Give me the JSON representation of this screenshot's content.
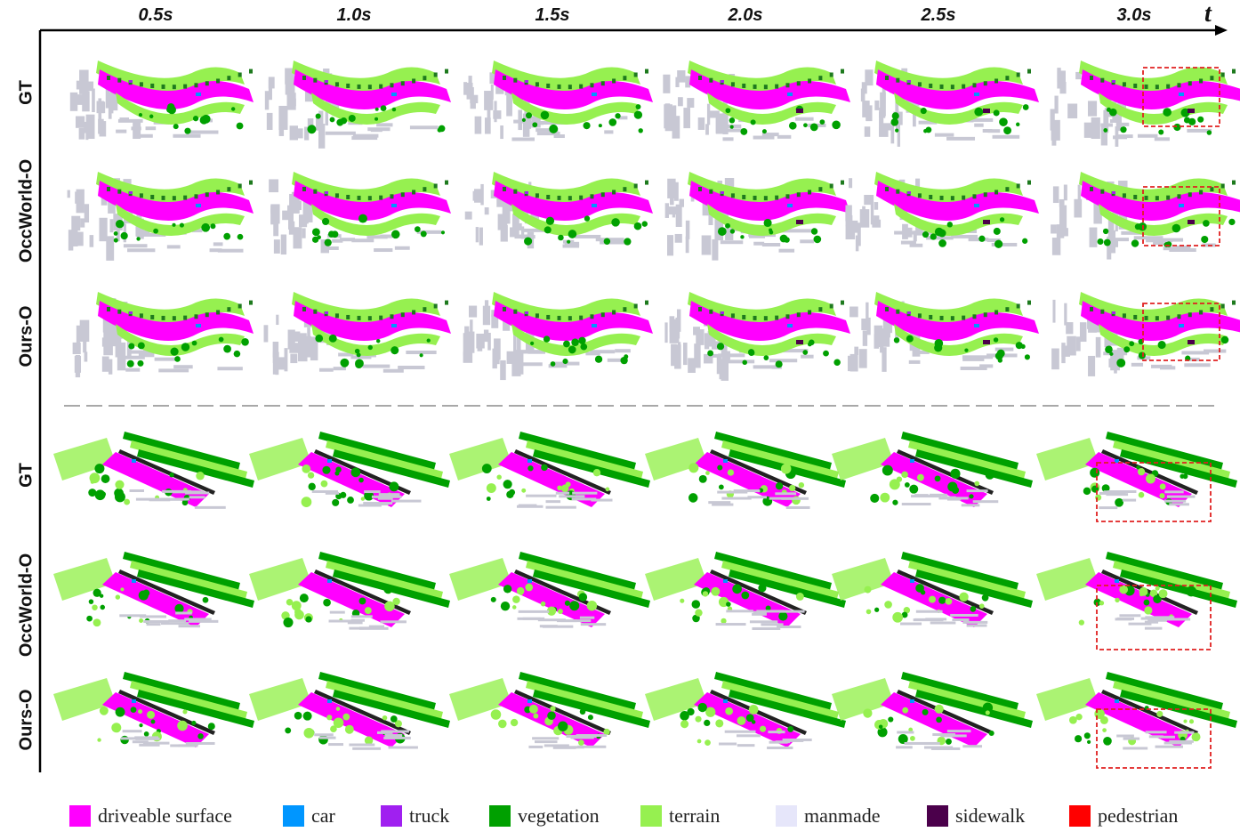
{
  "time_labels": [
    "0.5s",
    "1.0s",
    "1.5s",
    "2.0s",
    "2.5s",
    "3.0s"
  ],
  "time_axis_label": "t",
  "groups": [
    {
      "rows": [
        "GT",
        "OccWorld-O",
        "Ours-O"
      ],
      "scene": "curved-road"
    },
    {
      "rows": [
        "GT",
        "OccWorld-O",
        "Ours-O"
      ],
      "scene": "straight-road"
    }
  ],
  "legend": [
    {
      "label": "driveable surface",
      "color": "#ff00ff"
    },
    {
      "label": "car",
      "color": "#0096ff"
    },
    {
      "label": "truck",
      "color": "#a020f0"
    },
    {
      "label": "vegetation",
      "color": "#00a000"
    },
    {
      "label": "terrain",
      "color": "#96f050"
    },
    {
      "label": "manmade",
      "color": "#e6e6fa"
    },
    {
      "label": "sidewalk",
      "color": "#4b004b"
    },
    {
      "label": "pedestrian",
      "color": "#ff0000"
    }
  ],
  "colors": {
    "axis": "#000000",
    "divider": "#a8a8a8",
    "highlight_box": "#e02020",
    "manmade_render": "#c8c8d4",
    "vegetation_dark": "#1e7a1e"
  }
}
